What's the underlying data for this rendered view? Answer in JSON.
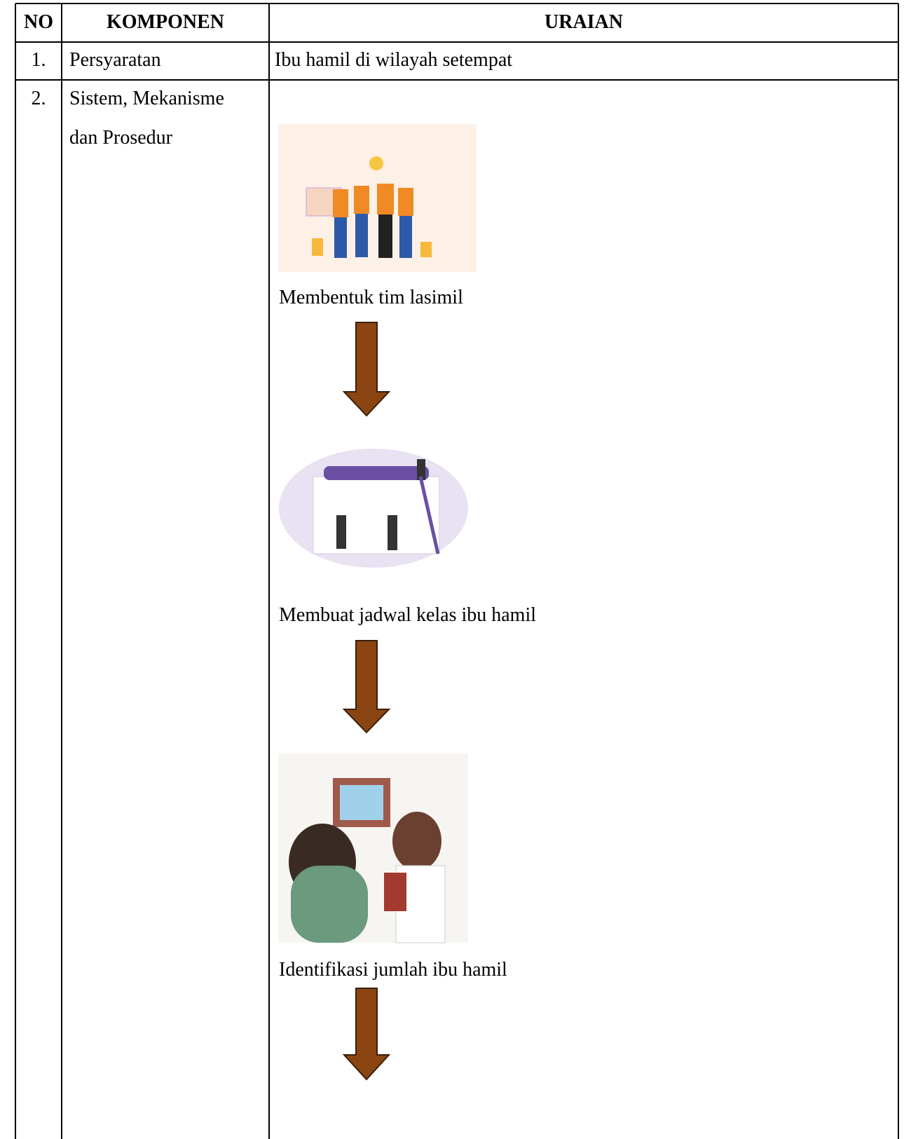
{
  "table": {
    "header": [
      "NO",
      "KOMPONEN",
      "URAIAN"
    ],
    "rows": [
      [
        "1.",
        "Persyaratan",
        "Ibu hamil di wilayah setempat"
      ],
      [
        "2.",
        "Sistem, Mekanisme dan Prosedur"
      ]
    ],
    "steps": [
      "Membentuk tim lasimil",
      "Membuat jadwal kelas ibu hamil",
      "Identifikasi jumlah ibu hamil"
    ]
  }
}
